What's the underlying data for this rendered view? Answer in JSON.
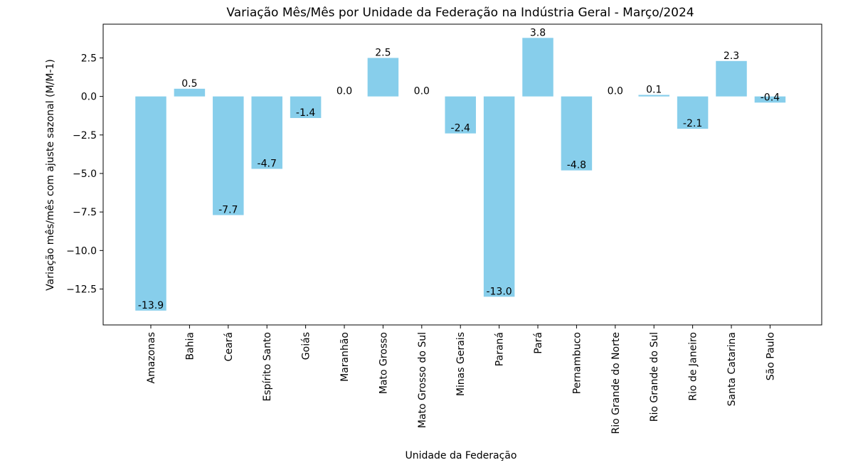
{
  "chart_data": {
    "type": "bar",
    "title": "Variação Mês/Mês por Unidade da Federação na Indústria Geral - Março/2024",
    "xlabel": "Unidade da Federação",
    "ylabel": "Variação mês/mês com ajuste sazonal (M/M-1)",
    "categories": [
      "Amazonas",
      "Bahia",
      "Ceará",
      "Espírito Santo",
      "Goiás",
      "Maranhão",
      "Mato Grosso",
      "Mato Grosso do Sul",
      "Minas Gerais",
      "Paraná",
      "Pará",
      "Pernambuco",
      "Rio Grande do Norte",
      "Rio Grande do Sul",
      "Rio de Janeiro",
      "Santa Catarina",
      "São Paulo"
    ],
    "values": [
      -13.9,
      0.5,
      -7.7,
      -4.7,
      -1.4,
      0.0,
      2.5,
      0.0,
      -2.4,
      -13.0,
      3.8,
      -4.8,
      0.0,
      0.1,
      -2.1,
      2.3,
      -0.4
    ],
    "data_labels": [
      "-13.9",
      "0.5",
      "-7.7",
      "-4.7",
      "-1.4",
      "0.0",
      "2.5",
      "0.0",
      "-2.4",
      "-13.0",
      "3.8",
      "-4.8",
      "0.0",
      "0.1",
      "-2.1",
      "2.3",
      "-0.4"
    ],
    "ylim": [
      -14.83,
      4.69
    ],
    "yticks": [
      2.5,
      0.0,
      -2.5,
      -5.0,
      -7.5,
      -10.0,
      -12.5
    ],
    "ytick_labels": [
      "2.5",
      "0.0",
      "−2.5",
      "−5.0",
      "−7.5",
      "−10.0",
      "−12.5"
    ],
    "bar_color": "#87ceeb",
    "grid": false,
    "legend": "none"
  }
}
